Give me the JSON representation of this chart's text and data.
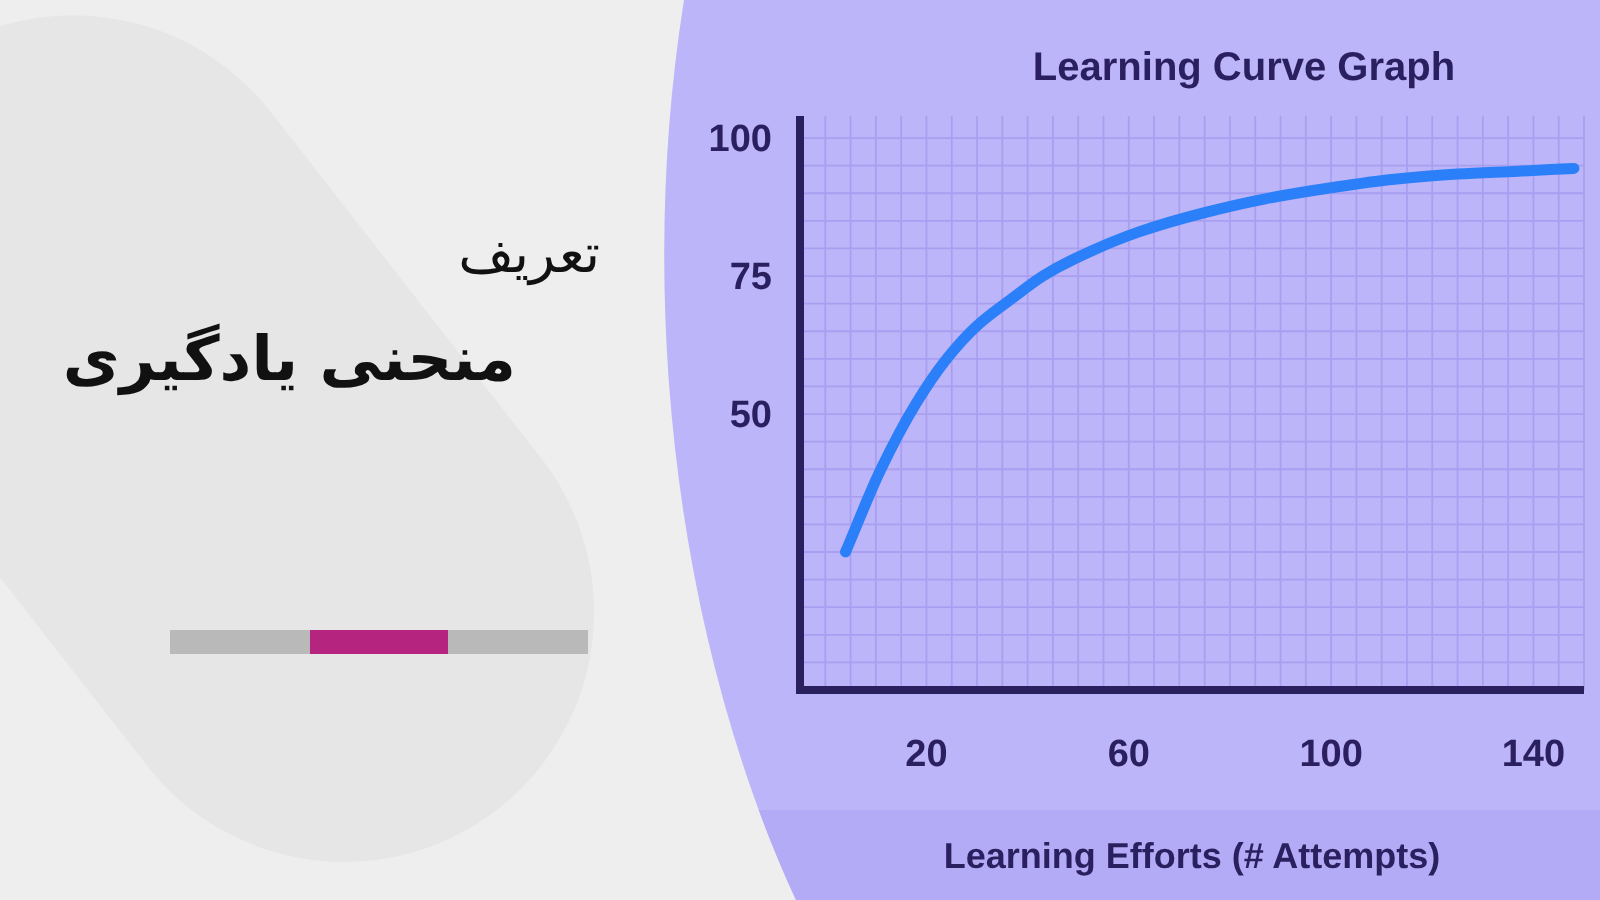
{
  "chart_data": {
    "type": "line",
    "title": "Learning Curve Graph",
    "xlabel": "Learning Efforts (# Attempts)",
    "annotations": [
      "تعریف",
      "منحنی یادگیری"
    ],
    "x": [
      4,
      11,
      18,
      24,
      30,
      37,
      43,
      49,
      62,
      75,
      87,
      100,
      112,
      125,
      137,
      148
    ],
    "series": [
      {
        "color": "#2b7ff8",
        "values": [
          25,
          40,
          52,
          60,
          66,
          71,
          75,
          78,
          83,
          86.5,
          89,
          91,
          92.5,
          93.5,
          94,
          94.5
        ]
      }
    ],
    "xlim": [
      -5,
      150
    ],
    "ylim": [
      0,
      104
    ],
    "xticks": [
      {
        "value": 0,
        "label": null
      },
      {
        "value": 5,
        "label": null
      },
      {
        "value": 10,
        "label": null
      },
      {
        "value": 15,
        "label": null
      },
      20,
      {
        "value": 25,
        "label": null
      },
      {
        "value": 30,
        "label": null
      },
      {
        "value": 35,
        "label": null
      },
      {
        "value": 40,
        "label": null
      },
      {
        "value": 45,
        "label": null
      },
      {
        "value": 50,
        "label": null
      },
      {
        "value": 55,
        "label": null
      },
      60,
      {
        "value": 65,
        "label": null
      },
      {
        "value": 70,
        "label": null
      },
      {
        "value": 75,
        "label": null
      },
      {
        "value": 80,
        "label": null
      },
      {
        "value": 85,
        "label": null
      },
      {
        "value": 90,
        "label": null
      },
      {
        "value": 95,
        "label": null
      },
      100,
      {
        "value": 105,
        "label": null
      },
      {
        "value": 110,
        "label": null
      },
      {
        "value": 115,
        "label": null
      },
      {
        "value": 120,
        "label": null
      },
      {
        "value": 125,
        "label": null
      },
      {
        "value": 130,
        "label": null
      },
      {
        "value": 135,
        "label": null
      },
      140,
      {
        "value": 145,
        "label": null
      },
      {
        "value": 150,
        "label": null
      }
    ],
    "yticks": [
      {
        "value": 5,
        "label": null
      },
      {
        "value": 10,
        "label": null
      },
      {
        "value": 15,
        "label": null
      },
      {
        "value": 20,
        "label": null
      },
      {
        "value": 25,
        "label": null
      },
      {
        "value": 30,
        "label": null
      },
      {
        "value": 35,
        "label": null
      },
      {
        "value": 40,
        "label": null
      },
      {
        "value": 45,
        "label": null
      },
      50,
      {
        "value": 55,
        "label": null
      },
      {
        "value": 60,
        "label": null
      },
      {
        "value": 65,
        "label": null
      },
      {
        "value": 70,
        "label": null
      },
      75,
      {
        "value": 80,
        "label": null
      },
      {
        "value": 85,
        "label": null
      },
      {
        "value": 90,
        "label": null
      },
      {
        "value": 95,
        "label": null
      },
      100
    ],
    "grid": true,
    "line_style": "solid"
  }
}
